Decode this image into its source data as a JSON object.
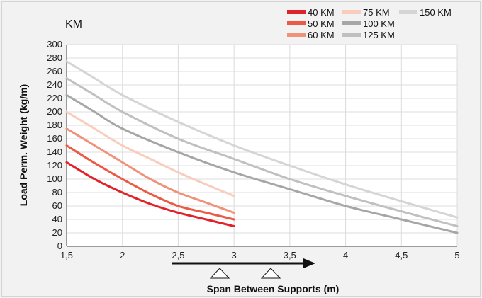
{
  "chart_data": {
    "type": "line",
    "unit_label": "KM",
    "xlabel": "Span Between Supports (m)",
    "ylabel": "Load Perm. Weight (kg/m)",
    "xlim": [
      1.5,
      5
    ],
    "ylim": [
      0,
      300
    ],
    "x_ticks": [
      {
        "v": 1.5,
        "label": "1,5"
      },
      {
        "v": 2,
        "label": "2"
      },
      {
        "v": 2.5,
        "label": "2,5"
      },
      {
        "v": 3,
        "label": "3"
      },
      {
        "v": 3.5,
        "label": "3,5"
      },
      {
        "v": 4,
        "label": "4"
      },
      {
        "v": 4.5,
        "label": "4,5"
      },
      {
        "v": 5,
        "label": "5"
      }
    ],
    "y_ticks": [
      0,
      20,
      40,
      60,
      80,
      100,
      120,
      140,
      160,
      180,
      200,
      220,
      240,
      260,
      280,
      300
    ],
    "grid": true,
    "legend_position": "top-right",
    "series": [
      {
        "name": "40 KM",
        "color": "#e0232a",
        "x": [
          1.5,
          1.75,
          2,
          2.25,
          2.5,
          2.75,
          3
        ],
        "y": [
          125,
          100,
          80,
          63,
          50,
          40,
          30
        ]
      },
      {
        "name": "50 KM",
        "color": "#ea5a45",
        "x": [
          1.5,
          1.75,
          2,
          2.25,
          2.5,
          2.75,
          3
        ],
        "y": [
          150,
          124,
          100,
          78,
          60,
          50,
          40
        ]
      },
      {
        "name": "60 KM",
        "color": "#f0917a",
        "x": [
          1.5,
          1.75,
          2,
          2.25,
          2.5,
          2.75,
          3
        ],
        "y": [
          175,
          150,
          125,
          100,
          80,
          65,
          50
        ]
      },
      {
        "name": "75  KM",
        "color": "#f8cdbd",
        "x": [
          1.5,
          1.75,
          2,
          2.25,
          2.5,
          2.75,
          3
        ],
        "y": [
          200,
          175,
          150,
          130,
          110,
          92,
          75
        ]
      },
      {
        "name": "100 KM",
        "color": "#a6a6a6",
        "x": [
          1.5,
          1.75,
          2,
          2.5,
          3,
          3.5,
          4,
          4.5,
          5
        ],
        "y": [
          225,
          200,
          175,
          140,
          110,
          85,
          60,
          40,
          20
        ]
      },
      {
        "name": "125 KM",
        "color": "#c0c0c0",
        "x": [
          1.5,
          1.75,
          2,
          2.5,
          3,
          3.5,
          4,
          4.5,
          5
        ],
        "y": [
          250,
          225,
          200,
          160,
          130,
          100,
          75,
          52,
          30
        ]
      },
      {
        "name": "150 KM",
        "color": "#d5d5d5",
        "x": [
          1.5,
          1.75,
          2,
          2.5,
          3,
          3.5,
          4,
          4.5,
          5
        ],
        "y": [
          275,
          250,
          225,
          185,
          150,
          120,
          92,
          67,
          43
        ]
      }
    ]
  }
}
